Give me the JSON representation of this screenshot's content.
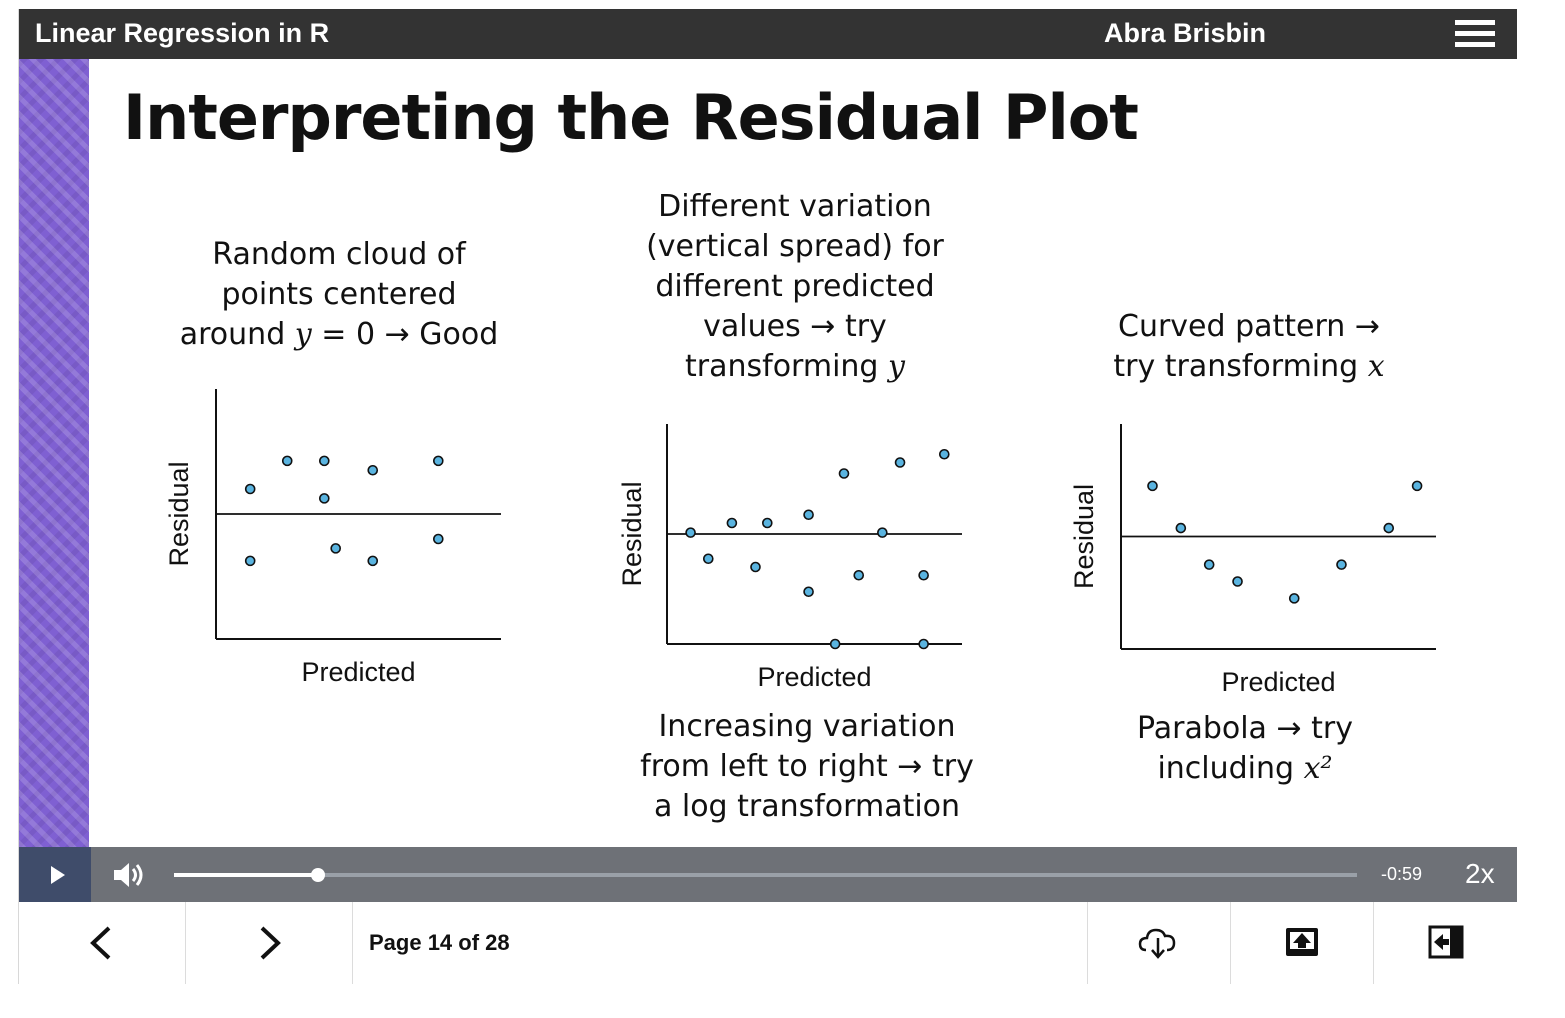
{
  "header": {
    "course_title": "Linear Regression in R",
    "author": "Abra Brisbin",
    "menu_icon": "hamburger-menu-icon"
  },
  "slide": {
    "title": "Interpreting the Residual Plot",
    "stripe_color": "#7f60d2",
    "panels": [
      {
        "caption_lines": [
          "Random cloud of",
          "points centered",
          "around y = 0 → Good"
        ],
        "bottom_caption_lines": []
      },
      {
        "caption_lines": [
          "Different variation",
          "(vertical spread) for",
          "different predicted",
          "values → try",
          "transforming y"
        ],
        "bottom_caption_lines": [
          "Increasing variation",
          "from left to right → try",
          "a log transformation"
        ]
      },
      {
        "caption_lines": [
          "Curved pattern →",
          "try transforming x"
        ],
        "bottom_caption_lines": [
          "Parabola → try",
          "including x²"
        ]
      }
    ]
  },
  "chart_data": [
    {
      "type": "scatter",
      "xlabel": "Predicted",
      "ylabel": "Residual",
      "xlim": [
        0,
        10
      ],
      "ylim": [
        -4,
        4
      ],
      "zero_line": true,
      "point_color": "#5ab4e0",
      "points": [
        [
          1.2,
          0.8
        ],
        [
          2.5,
          1.7
        ],
        [
          3.8,
          1.7
        ],
        [
          5.5,
          1.4
        ],
        [
          7.8,
          1.7
        ],
        [
          3.8,
          0.5
        ],
        [
          1.2,
          -1.5
        ],
        [
          4.2,
          -1.1
        ],
        [
          5.5,
          -1.5
        ],
        [
          7.8,
          -0.8
        ]
      ]
    },
    {
      "type": "scatter",
      "xlabel": "Predicted",
      "ylabel": "Residual",
      "xlim": [
        0,
        10
      ],
      "ylim": [
        -4,
        4
      ],
      "zero_line": true,
      "point_color": "#5ab4e0",
      "points": [
        [
          0.8,
          0.05
        ],
        [
          1.4,
          -0.9
        ],
        [
          2.2,
          0.4
        ],
        [
          3.0,
          -1.2
        ],
        [
          3.4,
          0.4
        ],
        [
          4.8,
          0.7
        ],
        [
          4.8,
          -2.1
        ],
        [
          5.7,
          -4.0
        ],
        [
          6.0,
          2.2
        ],
        [
          6.5,
          -1.5
        ],
        [
          7.3,
          0.05
        ],
        [
          7.9,
          2.6
        ],
        [
          8.7,
          -1.5
        ],
        [
          8.7,
          -4.0
        ],
        [
          9.4,
          2.9
        ]
      ]
    },
    {
      "type": "scatter",
      "xlabel": "Predicted",
      "ylabel": "Residual",
      "xlim": [
        0,
        10
      ],
      "ylim": [
        -4,
        4
      ],
      "zero_line": true,
      "point_color": "#5ab4e0",
      "points": [
        [
          1.0,
          1.8
        ],
        [
          1.9,
          0.3
        ],
        [
          2.8,
          -1.0
        ],
        [
          3.7,
          -1.6
        ],
        [
          5.5,
          -2.2
        ],
        [
          7.0,
          -1.0
        ],
        [
          8.5,
          0.3
        ],
        [
          9.4,
          1.8
        ]
      ]
    }
  ],
  "player": {
    "play_icon": "play-icon",
    "volume_icon": "volume-icon",
    "progress": 0.122,
    "time_remaining": "-0:59",
    "speed": "2x"
  },
  "nav": {
    "prev_icon": "chevron-left-icon",
    "next_icon": "chevron-right-icon",
    "page_label": "Page 14 of 28",
    "download_icon": "cloud-download-icon",
    "upload_icon": "upload-icon",
    "exit_icon": "exit-icon"
  }
}
